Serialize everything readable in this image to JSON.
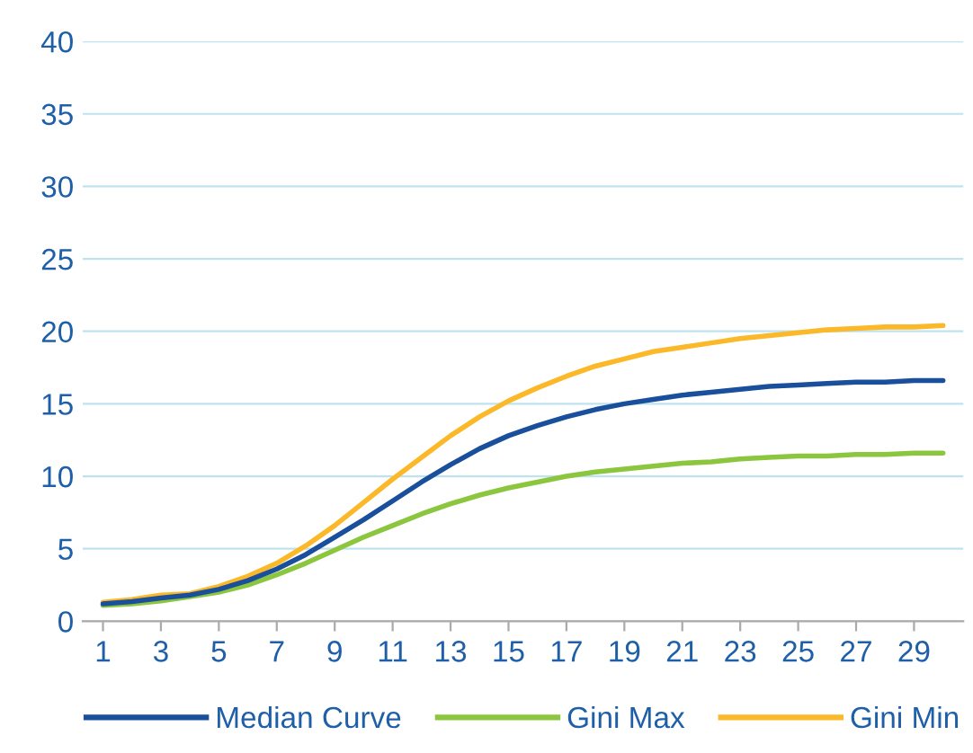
{
  "chart_data": {
    "type": "line",
    "x": [
      1,
      2,
      3,
      4,
      5,
      6,
      7,
      8,
      9,
      10,
      11,
      12,
      13,
      14,
      15,
      16,
      17,
      18,
      19,
      20,
      21,
      22,
      23,
      24,
      25,
      26,
      27,
      28,
      29,
      30
    ],
    "series": [
      {
        "name": "Median Curve",
        "color": "#1a4f9c",
        "values": [
          1.2,
          1.35,
          1.6,
          1.8,
          2.2,
          2.8,
          3.6,
          4.6,
          5.8,
          7.0,
          8.3,
          9.6,
          10.8,
          11.9,
          12.8,
          13.5,
          14.1,
          14.6,
          15.0,
          15.3,
          15.6,
          15.8,
          16.0,
          16.2,
          16.3,
          16.4,
          16.5,
          16.5,
          16.6,
          16.6
        ]
      },
      {
        "name": "Gini Max",
        "color": "#8cc63f",
        "values": [
          1.1,
          1.2,
          1.4,
          1.7,
          2.0,
          2.5,
          3.2,
          4.0,
          4.9,
          5.8,
          6.6,
          7.4,
          8.1,
          8.7,
          9.2,
          9.6,
          10.0,
          10.3,
          10.5,
          10.7,
          10.9,
          11.0,
          11.2,
          11.3,
          11.4,
          11.4,
          11.5,
          11.5,
          11.6,
          11.6
        ]
      },
      {
        "name": "Gini Min",
        "color": "#fbb829",
        "values": [
          1.3,
          1.5,
          1.8,
          1.9,
          2.4,
          3.1,
          4.0,
          5.2,
          6.6,
          8.2,
          9.8,
          11.3,
          12.8,
          14.1,
          15.2,
          16.1,
          16.9,
          17.6,
          18.1,
          18.6,
          18.9,
          19.2,
          19.5,
          19.7,
          19.9,
          20.1,
          20.2,
          20.3,
          20.3,
          20.4
        ]
      }
    ],
    "xlim": [
      0.3,
      30.7
    ],
    "xticks": [
      1,
      3,
      5,
      7,
      9,
      11,
      13,
      15,
      17,
      19,
      21,
      23,
      25,
      27,
      29
    ],
    "ylim": [
      0,
      40
    ],
    "yticks": [
      0,
      5,
      10,
      15,
      20,
      25,
      30,
      35,
      40
    ],
    "grid": "y",
    "legend": "bottom",
    "marker": "none",
    "line_style": "solid"
  }
}
